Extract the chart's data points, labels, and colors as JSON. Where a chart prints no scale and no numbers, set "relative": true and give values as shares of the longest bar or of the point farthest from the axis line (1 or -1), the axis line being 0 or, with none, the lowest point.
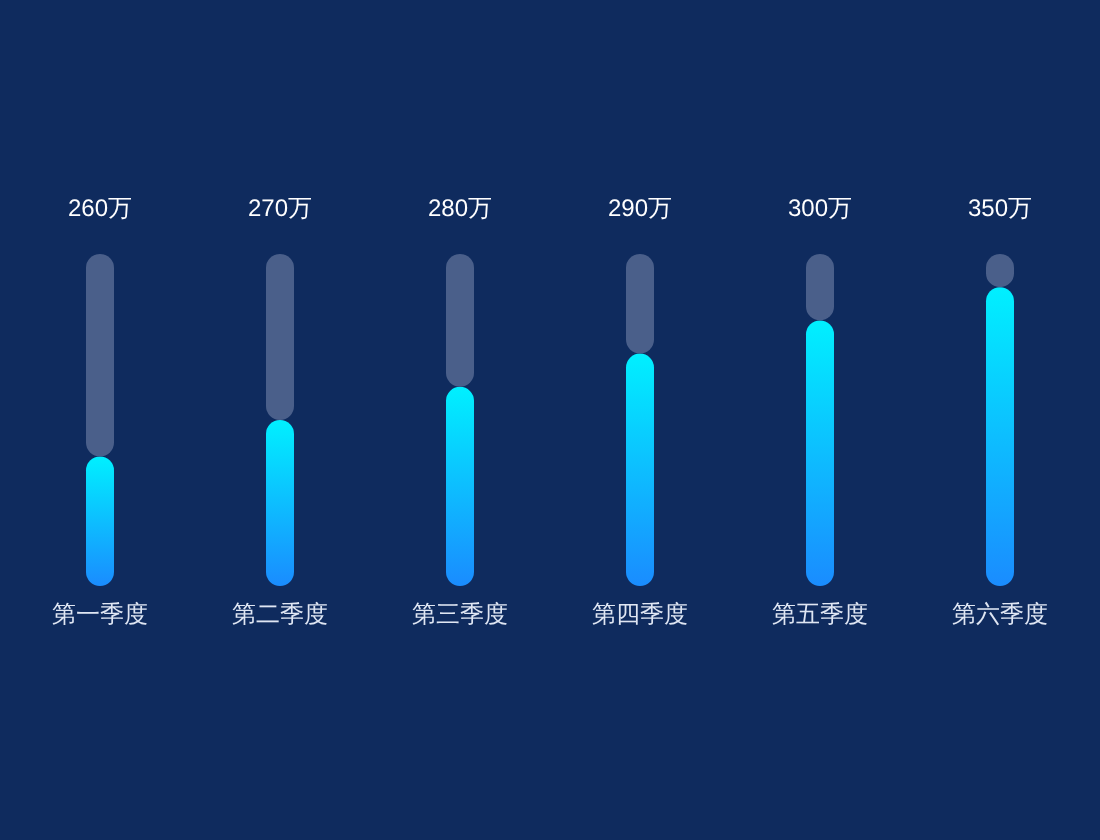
{
  "chart_data": {
    "type": "bar",
    "relative": true,
    "stacked": true,
    "categories": [
      "第一季度",
      "第二季度",
      "第三季度",
      "第四季度",
      "第五季度",
      "第六季度"
    ],
    "series": [
      {
        "color": "#00f0ff",
        "values": [
          0.39,
          0.5,
          0.6,
          0.7,
          0.8,
          0.9
        ]
      },
      {
        "color": "#4a5f8a",
        "values": [
          0.61,
          0.5,
          0.4,
          0.3,
          0.2,
          0.1
        ]
      }
    ],
    "annotations": [
      "260万",
      "270万",
      "280万",
      "290万",
      "300万",
      "350万"
    ]
  }
}
